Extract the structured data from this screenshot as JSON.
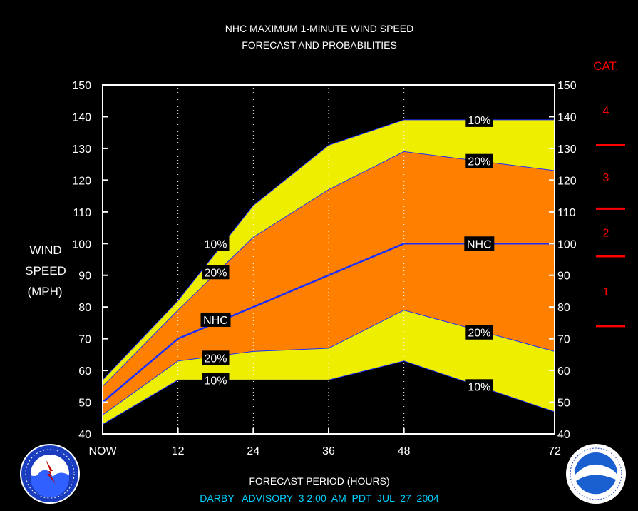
{
  "title_line1": "NHC MAXIMUM 1-MINUTE WIND SPEED",
  "title_line2": "FORECAST AND PROBABILITIES",
  "ylabel_lines": [
    "WIND",
    "SPEED",
    "(MPH)"
  ],
  "xlabel": "FORECAST PERIOD (HOURS)",
  "advisory": "DARBY   ADVISORY  3 2:00  AM  PDT  JUL  27  2004",
  "cat_header": "CAT.",
  "colors": {
    "band10": "#eeee00",
    "band20": "#ff8000",
    "nhc_line": "#1a2eff",
    "grid": "#ffffff",
    "cat_text": "#ff0000",
    "advisory_text": "#00d0ff"
  },
  "chart_data": {
    "type": "area",
    "x": [
      0,
      12,
      24,
      36,
      48,
      72
    ],
    "xtick_labels": [
      "NOW",
      "12",
      "24",
      "36",
      "48",
      "72"
    ],
    "xlim": [
      0,
      72
    ],
    "ylim": [
      40,
      150
    ],
    "yticks": [
      40,
      50,
      60,
      70,
      80,
      90,
      100,
      110,
      120,
      130,
      140,
      150
    ],
    "grid": "vertical dotted",
    "series": [
      {
        "name": "10%",
        "role": "upper",
        "values": [
          57,
          82,
          112,
          131,
          139,
          139
        ]
      },
      {
        "name": "20%",
        "role": "upper",
        "values": [
          55,
          79,
          102,
          117,
          129,
          123
        ]
      },
      {
        "name": "NHC",
        "role": "forecast",
        "values": [
          50,
          70,
          80,
          90,
          100,
          100
        ]
      },
      {
        "name": "20%",
        "role": "lower",
        "values": [
          46,
          63,
          66,
          67,
          79,
          66
        ]
      },
      {
        "name": "10%",
        "role": "lower",
        "values": [
          43,
          57,
          57,
          57,
          63,
          47
        ]
      }
    ],
    "labels": [
      {
        "text": "10%",
        "x": 18,
        "y": 100
      },
      {
        "text": "20%",
        "x": 18,
        "y": 91
      },
      {
        "text": "NHC",
        "x": 18,
        "y": 76
      },
      {
        "text": "20%",
        "x": 18,
        "y": 64
      },
      {
        "text": "10%",
        "x": 18,
        "y": 57
      },
      {
        "text": "10%",
        "x": 60,
        "y": 139
      },
      {
        "text": "20%",
        "x": 60,
        "y": 126
      },
      {
        "text": "NHC",
        "x": 60,
        "y": 100
      },
      {
        "text": "20%",
        "x": 60,
        "y": 72
      },
      {
        "text": "10%",
        "x": 60,
        "y": 55
      }
    ],
    "categories_scale": {
      "thresholds": [
        74,
        96,
        111,
        131
      ],
      "labels": [
        {
          "text": "1",
          "y": 85
        },
        {
          "text": "2",
          "y": 103.5
        },
        {
          "text": "3",
          "y": 121
        },
        {
          "text": "4",
          "y": 142
        }
      ]
    }
  }
}
